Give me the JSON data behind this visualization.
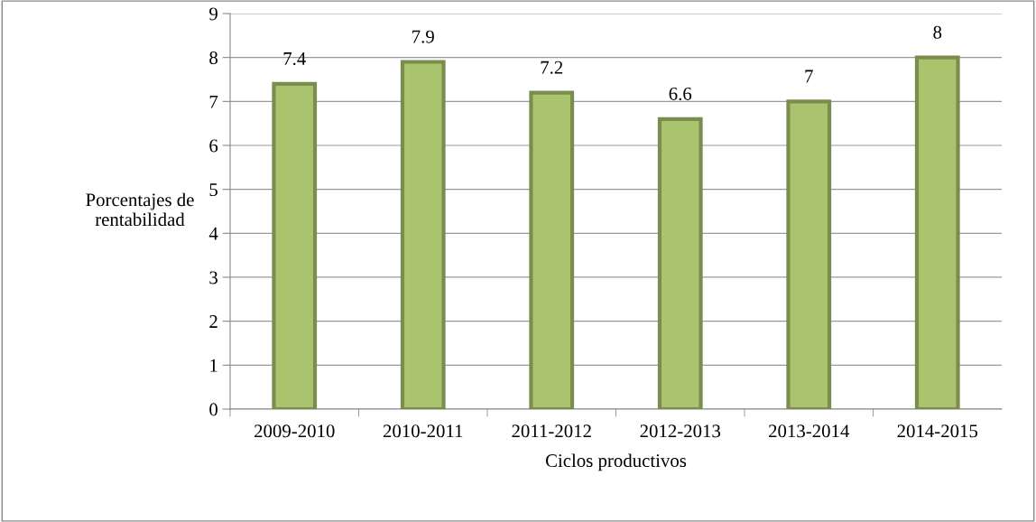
{
  "chart_data": {
    "type": "bar",
    "xlabel": "Ciclos productivos",
    "ylabel": "Porcentajes de\nrentabilidad",
    "categories": [
      "2009-2010",
      "2010-2011",
      "2011-2012",
      "2012-2013",
      "2013-2014",
      "2014-2015"
    ],
    "values": [
      7.4,
      7.9,
      7.2,
      6.6,
      7,
      8
    ],
    "color": "#a9c46c",
    "ylim": [
      0,
      9
    ],
    "yticks": [
      0,
      1,
      2,
      3,
      4,
      5,
      6,
      7,
      8,
      9
    ],
    "grid": "y",
    "data_labels": true
  }
}
